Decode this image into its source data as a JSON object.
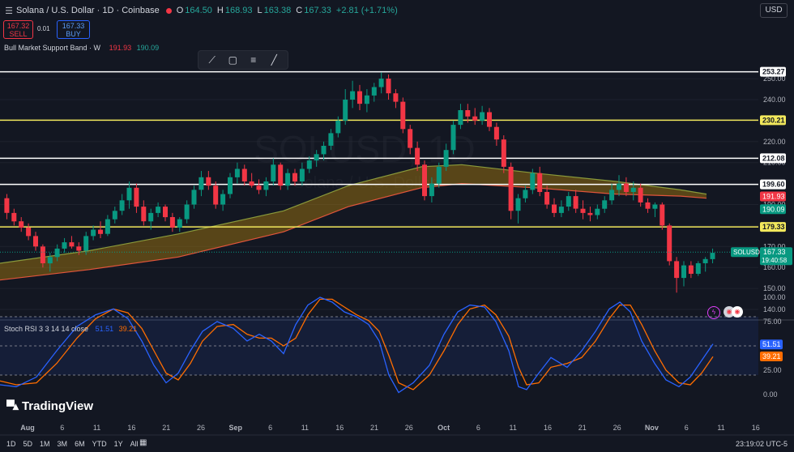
{
  "header": {
    "title": "Solana / U.S. Dollar · 1D · Coinbase",
    "open_label": "O",
    "open": "164.50",
    "high_label": "H",
    "high": "168.93",
    "low_label": "L",
    "low": "163.38",
    "close_label": "C",
    "close": "167.33",
    "change": "+2.81 (+1.71%)",
    "currency": "USD"
  },
  "trade": {
    "sell_price": "167.32",
    "sell_label": "SELL",
    "spread": "0.01",
    "buy_price": "167.33",
    "buy_label": "BUY"
  },
  "indicator": {
    "name": "Bull Market Support Band · W",
    "value1": "191.93",
    "value2": "190.09"
  },
  "watermark": {
    "symbol": "SOLUSD, 1D",
    "name": "Solana / U.S. Dollar"
  },
  "price_axis": {
    "ticks": [
      250,
      240,
      230,
      220,
      210,
      200,
      190,
      180,
      170,
      160,
      150,
      140
    ],
    "tick_labels": [
      "250.00",
      "240.00",
      "230.00",
      "220.00",
      "210.00",
      "200.00",
      "190.00",
      "180.00",
      "170.00",
      "160.00",
      "150.00",
      "140.00"
    ],
    "levels": [
      {
        "value": 253.27,
        "label": "253.27",
        "color": "#ffffff"
      },
      {
        "value": 230.21,
        "label": "230.21",
        "color": "#f2e85c"
      },
      {
        "value": 212.08,
        "label": "212.08",
        "color": "#ffffff"
      },
      {
        "value": 199.6,
        "label": "199.60",
        "color": "#ffffff"
      },
      {
        "value": 179.33,
        "label": "179.33",
        "color": "#f2e85c"
      }
    ],
    "band_labels": [
      {
        "value": 191.93,
        "label": "191.93",
        "color": "#f23645"
      },
      {
        "value": 190.09,
        "label": "190.09",
        "color": "#089981"
      }
    ],
    "current": {
      "symbol": "SOLUSD",
      "value": 167.33,
      "label": "167.33",
      "countdown": "19:40:58"
    }
  },
  "time_axis": {
    "labels": [
      "Aug",
      "6",
      "11",
      "16",
      "21",
      "26",
      "Sep",
      "6",
      "11",
      "16",
      "21",
      "26",
      "Oct",
      "6",
      "11",
      "16",
      "21",
      "26",
      "Nov",
      "6",
      "11",
      "16"
    ],
    "bold": [
      "Aug",
      "Sep",
      "Oct",
      "Nov"
    ]
  },
  "rsi": {
    "title": "Stoch RSI 3 3 14 14 close",
    "k": "51.51",
    "d": "39.21",
    "k_color": "#2962ff",
    "d_color": "#ff6d00",
    "ticks": [
      100,
      75,
      50,
      25,
      0
    ],
    "tick_labels": [
      "100.00",
      "75.00",
      "50.00",
      "25.00",
      "0.00"
    ]
  },
  "branding": {
    "logo": "TradingView"
  },
  "ranges": [
    "1D",
    "5D",
    "1M",
    "3M",
    "6M",
    "YTD",
    "1Y",
    "All"
  ],
  "clock": "23:19:02 UTC-5",
  "toolbar": {
    "icons": [
      "line-tool-icon",
      "square-tool-icon",
      "text-tool-icon",
      "brush-tool-icon"
    ]
  },
  "colors": {
    "up": "#089981",
    "down": "#f23645",
    "background": "#131722",
    "band_fill": "#b8860b"
  },
  "chart_data": {
    "type": "candlestick",
    "title": "Solana / U.S. Dollar · 1D · Coinbase",
    "ylim": [
      140,
      257
    ],
    "candles": [
      [
        193,
        195,
        183,
        186
      ],
      [
        186,
        188,
        180,
        182
      ],
      [
        182,
        184,
        177,
        179
      ],
      [
        179,
        181,
        173,
        175
      ],
      [
        175,
        177,
        168,
        170
      ],
      [
        170,
        171,
        160,
        162
      ],
      [
        162,
        167,
        158,
        165
      ],
      [
        165,
        171,
        163,
        169
      ],
      [
        169,
        174,
        167,
        172
      ],
      [
        172,
        175,
        169,
        170
      ],
      [
        170,
        172,
        166,
        168
      ],
      [
        168,
        177,
        166,
        175
      ],
      [
        175,
        180,
        173,
        178
      ],
      [
        178,
        182,
        174,
        176
      ],
      [
        176,
        185,
        175,
        183
      ],
      [
        183,
        189,
        181,
        187
      ],
      [
        187,
        195,
        185,
        192
      ],
      [
        192,
        201,
        188,
        198
      ],
      [
        198,
        200,
        186,
        189
      ],
      [
        189,
        192,
        180,
        182
      ],
      [
        182,
        188,
        178,
        186
      ],
      [
        186,
        191,
        184,
        189
      ],
      [
        189,
        190,
        182,
        184
      ],
      [
        184,
        186,
        177,
        179
      ],
      [
        179,
        184,
        177,
        183
      ],
      [
        183,
        192,
        181,
        190
      ],
      [
        190,
        199,
        188,
        197
      ],
      [
        197,
        206,
        194,
        203
      ],
      [
        203,
        206,
        197,
        199
      ],
      [
        199,
        201,
        188,
        190
      ],
      [
        190,
        197,
        187,
        195
      ],
      [
        195,
        205,
        193,
        203
      ],
      [
        203,
        210,
        200,
        207
      ],
      [
        207,
        209,
        199,
        201
      ],
      [
        201,
        205,
        198,
        199
      ],
      [
        199,
        202,
        195,
        197
      ],
      [
        197,
        203,
        194,
        201
      ],
      [
        201,
        212,
        199,
        209
      ],
      [
        209,
        210,
        197,
        199
      ],
      [
        199,
        207,
        197,
        205
      ],
      [
        205,
        207,
        199,
        201
      ],
      [
        201,
        210,
        199,
        207
      ],
      [
        207,
        213,
        205,
        211
      ],
      [
        211,
        216,
        208,
        214
      ],
      [
        214,
        220,
        211,
        218
      ],
      [
        218,
        226,
        216,
        224
      ],
      [
        224,
        232,
        222,
        230
      ],
      [
        230,
        245,
        228,
        240
      ],
      [
        240,
        249,
        236,
        244
      ],
      [
        244,
        247,
        235,
        238
      ],
      [
        238,
        245,
        234,
        242
      ],
      [
        242,
        248,
        239,
        246
      ],
      [
        246,
        253,
        243,
        250
      ],
      [
        250,
        252,
        240,
        243
      ],
      [
        243,
        245,
        236,
        239
      ],
      [
        239,
        241,
        224,
        226
      ],
      [
        226,
        228,
        214,
        217
      ],
      [
        217,
        220,
        206,
        209
      ],
      [
        209,
        211,
        192,
        194
      ],
      [
        194,
        203,
        191,
        200
      ],
      [
        200,
        210,
        198,
        208
      ],
      [
        208,
        219,
        206,
        216
      ],
      [
        216,
        230,
        214,
        228
      ],
      [
        228,
        238,
        226,
        235
      ],
      [
        235,
        238,
        229,
        232
      ],
      [
        232,
        236,
        228,
        230
      ],
      [
        230,
        237,
        228,
        234
      ],
      [
        234,
        236,
        225,
        227
      ],
      [
        227,
        229,
        218,
        221
      ],
      [
        221,
        223,
        205,
        208
      ],
      [
        208,
        210,
        183,
        187
      ],
      [
        187,
        195,
        181,
        193
      ],
      [
        193,
        199,
        191,
        197
      ],
      [
        197,
        207,
        195,
        205
      ],
      [
        205,
        208,
        194,
        196
      ],
      [
        196,
        199,
        188,
        190
      ],
      [
        190,
        193,
        184,
        186
      ],
      [
        186,
        192,
        184,
        189
      ],
      [
        189,
        196,
        187,
        194
      ],
      [
        194,
        197,
        186,
        188
      ],
      [
        188,
        192,
        183,
        186
      ],
      [
        186,
        189,
        182,
        185
      ],
      [
        185,
        190,
        183,
        188
      ],
      [
        188,
        194,
        186,
        192
      ],
      [
        192,
        200,
        190,
        197
      ],
      [
        197,
        204,
        194,
        200
      ],
      [
        200,
        203,
        194,
        196
      ],
      [
        196,
        201,
        192,
        198
      ],
      [
        198,
        200,
        189,
        191
      ],
      [
        191,
        193,
        186,
        188
      ],
      [
        188,
        191,
        184,
        190
      ],
      [
        190,
        191,
        178,
        180
      ],
      [
        180,
        181,
        161,
        163
      ],
      [
        163,
        165,
        148,
        155
      ],
      [
        155,
        163,
        151,
        161
      ],
      [
        161,
        163,
        155,
        157
      ],
      [
        157,
        163,
        156,
        162
      ],
      [
        162,
        165,
        158,
        164
      ],
      [
        164,
        169,
        162,
        167
      ]
    ],
    "band_upper": [
      [
        0,
        162
      ],
      [
        110,
        168
      ],
      [
        220,
        176
      ],
      [
        350,
        187
      ],
      [
        430,
        199
      ],
      [
        520,
        208
      ],
      [
        570,
        209
      ],
      [
        660,
        205
      ],
      [
        760,
        201
      ],
      [
        840,
        197
      ],
      [
        872,
        195
      ]
    ],
    "band_lower": [
      [
        0,
        154
      ],
      [
        110,
        159
      ],
      [
        220,
        165
      ],
      [
        350,
        177
      ],
      [
        430,
        189
      ],
      [
        520,
        198
      ],
      [
        570,
        200
      ],
      [
        660,
        198
      ],
      [
        760,
        195
      ],
      [
        840,
        194
      ],
      [
        872,
        193
      ]
    ],
    "stoch_k": [
      [
        0,
        10
      ],
      [
        20,
        8
      ],
      [
        45,
        18
      ],
      [
        70,
        45
      ],
      [
        95,
        70
      ],
      [
        118,
        82
      ],
      [
        140,
        88
      ],
      [
        158,
        78
      ],
      [
        175,
        55
      ],
      [
        190,
        30
      ],
      [
        205,
        12
      ],
      [
        220,
        22
      ],
      [
        235,
        45
      ],
      [
        250,
        65
      ],
      [
        268,
        75
      ],
      [
        288,
        68
      ],
      [
        305,
        55
      ],
      [
        320,
        62
      ],
      [
        335,
        55
      ],
      [
        350,
        42
      ],
      [
        365,
        72
      ],
      [
        380,
        92
      ],
      [
        395,
        100
      ],
      [
        410,
        95
      ],
      [
        425,
        85
      ],
      [
        440,
        80
      ],
      [
        455,
        72
      ],
      [
        468,
        55
      ],
      [
        480,
        20
      ],
      [
        492,
        2
      ],
      [
        510,
        12
      ],
      [
        530,
        30
      ],
      [
        548,
        62
      ],
      [
        565,
        85
      ],
      [
        580,
        92
      ],
      [
        598,
        90
      ],
      [
        612,
        75
      ],
      [
        628,
        45
      ],
      [
        640,
        8
      ],
      [
        650,
        5
      ],
      [
        665,
        22
      ],
      [
        680,
        38
      ],
      [
        700,
        28
      ],
      [
        718,
        45
      ],
      [
        735,
        65
      ],
      [
        752,
        88
      ],
      [
        765,
        95
      ],
      [
        778,
        85
      ],
      [
        792,
        55
      ],
      [
        808,
        32
      ],
      [
        822,
        15
      ],
      [
        838,
        8
      ],
      [
        852,
        18
      ],
      [
        866,
        35
      ],
      [
        880,
        52
      ]
    ],
    "stoch_d": [
      [
        0,
        14
      ],
      [
        20,
        10
      ],
      [
        45,
        12
      ],
      [
        70,
        32
      ],
      [
        95,
        58
      ],
      [
        118,
        78
      ],
      [
        140,
        88
      ],
      [
        158,
        84
      ],
      [
        175,
        68
      ],
      [
        190,
        45
      ],
      [
        205,
        22
      ],
      [
        220,
        15
      ],
      [
        235,
        32
      ],
      [
        250,
        55
      ],
      [
        268,
        70
      ],
      [
        288,
        72
      ],
      [
        305,
        62
      ],
      [
        320,
        58
      ],
      [
        335,
        58
      ],
      [
        350,
        50
      ],
      [
        365,
        58
      ],
      [
        380,
        82
      ],
      [
        395,
        98
      ],
      [
        410,
        98
      ],
      [
        425,
        90
      ],
      [
        440,
        82
      ],
      [
        455,
        76
      ],
      [
        468,
        65
      ],
      [
        480,
        40
      ],
      [
        492,
        12
      ],
      [
        510,
        5
      ],
      [
        530,
        20
      ],
      [
        548,
        45
      ],
      [
        565,
        72
      ],
      [
        580,
        88
      ],
      [
        598,
        92
      ],
      [
        612,
        82
      ],
      [
        628,
        60
      ],
      [
        640,
        28
      ],
      [
        650,
        10
      ],
      [
        665,
        12
      ],
      [
        680,
        28
      ],
      [
        700,
        32
      ],
      [
        718,
        38
      ],
      [
        735,
        55
      ],
      [
        752,
        78
      ],
      [
        765,
        92
      ],
      [
        778,
        92
      ],
      [
        792,
        72
      ],
      [
        808,
        45
      ],
      [
        822,
        25
      ],
      [
        838,
        12
      ],
      [
        852,
        10
      ],
      [
        866,
        22
      ],
      [
        880,
        39
      ]
    ]
  }
}
